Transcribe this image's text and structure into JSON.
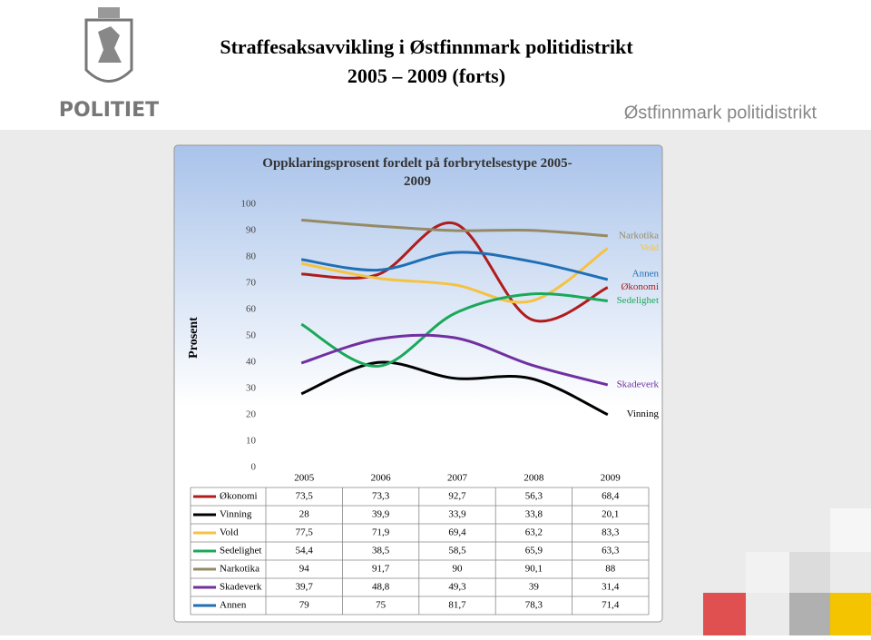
{
  "header": {
    "title_line1": "Straffesaksavvikling i Østfinnmark politidistrikt",
    "title_line2": "2005 – 2009 (forts)",
    "district": "Østfinnmark politidistrikt",
    "logo_text": "POLITIET"
  },
  "chart_data": {
    "type": "line",
    "title": "Oppklaringsprosent fordelt på forbrytelsestype 2005-2009",
    "y_label": "Prosent",
    "categories": [
      "2005",
      "2006",
      "2007",
      "2008",
      "2009"
    ],
    "ylim": [
      0,
      100
    ],
    "yticks": [
      0,
      10,
      20,
      30,
      40,
      50,
      60,
      70,
      80,
      90,
      100
    ],
    "smooth": true,
    "series": [
      {
        "name": "Økonomi",
        "color": "#b01c1c",
        "values": [
          73.5,
          73.3,
          92.7,
          56.3,
          68.4
        ],
        "value_labels": [
          "73,5",
          "73,3",
          "92,7",
          "56,3",
          "68,4"
        ]
      },
      {
        "name": "Vinning",
        "color": "#000000",
        "values": [
          28,
          39.9,
          33.9,
          33.8,
          20.1
        ],
        "value_labels": [
          "28",
          "39,9",
          "33,9",
          "33,8",
          "20,1"
        ]
      },
      {
        "name": "Vold",
        "color": "#f5c242",
        "values": [
          77.5,
          71.9,
          69.4,
          63.2,
          83.3
        ],
        "value_labels": [
          "77,5",
          "71,9",
          "69,4",
          "63,2",
          "83,3"
        ]
      },
      {
        "name": "Sedelighet",
        "color": "#1aa85a",
        "values": [
          54.4,
          38.5,
          58.5,
          65.9,
          63.3
        ],
        "value_labels": [
          "54,4",
          "38,5",
          "58,5",
          "65,9",
          "63,3"
        ]
      },
      {
        "name": "Narkotika",
        "color": "#948a66",
        "values": [
          94,
          91.7,
          90,
          90.1,
          88
        ],
        "value_labels": [
          "94",
          "91,7",
          "90",
          "90,1",
          "88"
        ]
      },
      {
        "name": "Skadeverk",
        "color": "#7030a0",
        "values": [
          39.7,
          48.8,
          49.3,
          39,
          31.4
        ],
        "value_labels": [
          "39,7",
          "48,8",
          "49,3",
          "39",
          "31,4"
        ]
      },
      {
        "name": "Annen",
        "color": "#1f6fb5",
        "values": [
          79,
          75,
          81.7,
          78.3,
          71.4
        ],
        "value_labels": [
          "79",
          "75",
          "81,7",
          "78,3",
          "71,4"
        ]
      }
    ]
  }
}
